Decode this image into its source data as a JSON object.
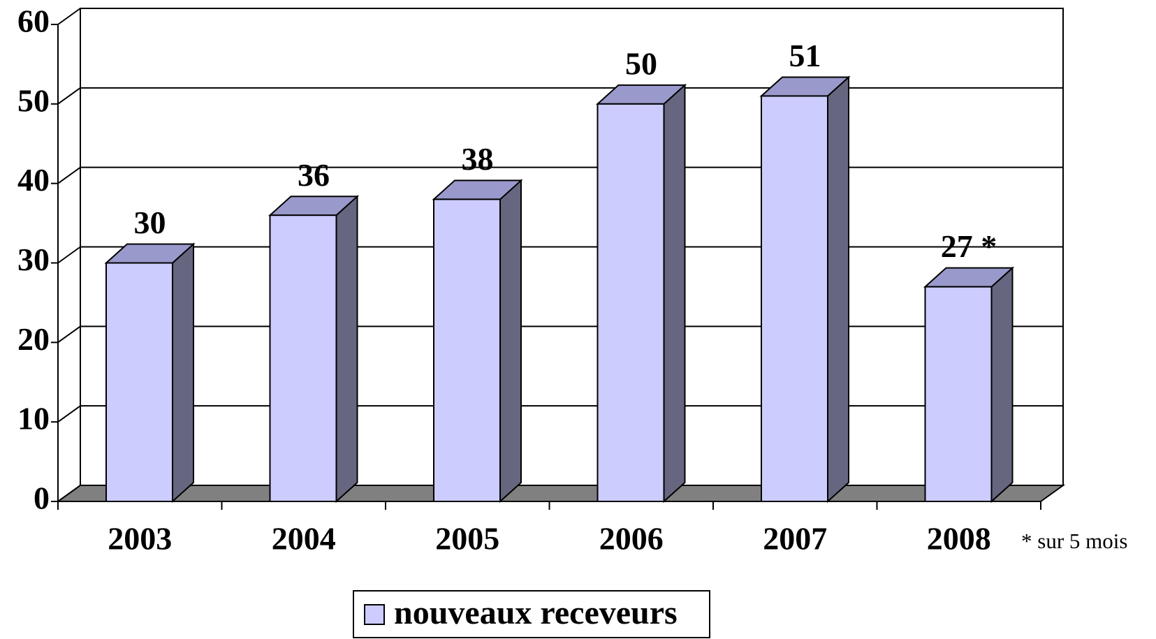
{
  "chart_data": {
    "type": "bar3d",
    "categories": [
      "2003",
      "2004",
      "2005",
      "2006",
      "2007",
      "2008"
    ],
    "series": [
      {
        "name": "nouveaux receveurs",
        "color": "#ccccff",
        "values": [
          30,
          36,
          38,
          50,
          51,
          27
        ],
        "value_labels": [
          "30",
          "36",
          "38",
          "50",
          "51",
          "27 *"
        ]
      }
    ],
    "annotation": "* sur 5 mois",
    "ylim": [
      0,
      60
    ],
    "yticks": [
      0,
      10,
      20,
      30,
      40,
      50,
      60
    ],
    "grid": true,
    "legend": "bottom"
  }
}
